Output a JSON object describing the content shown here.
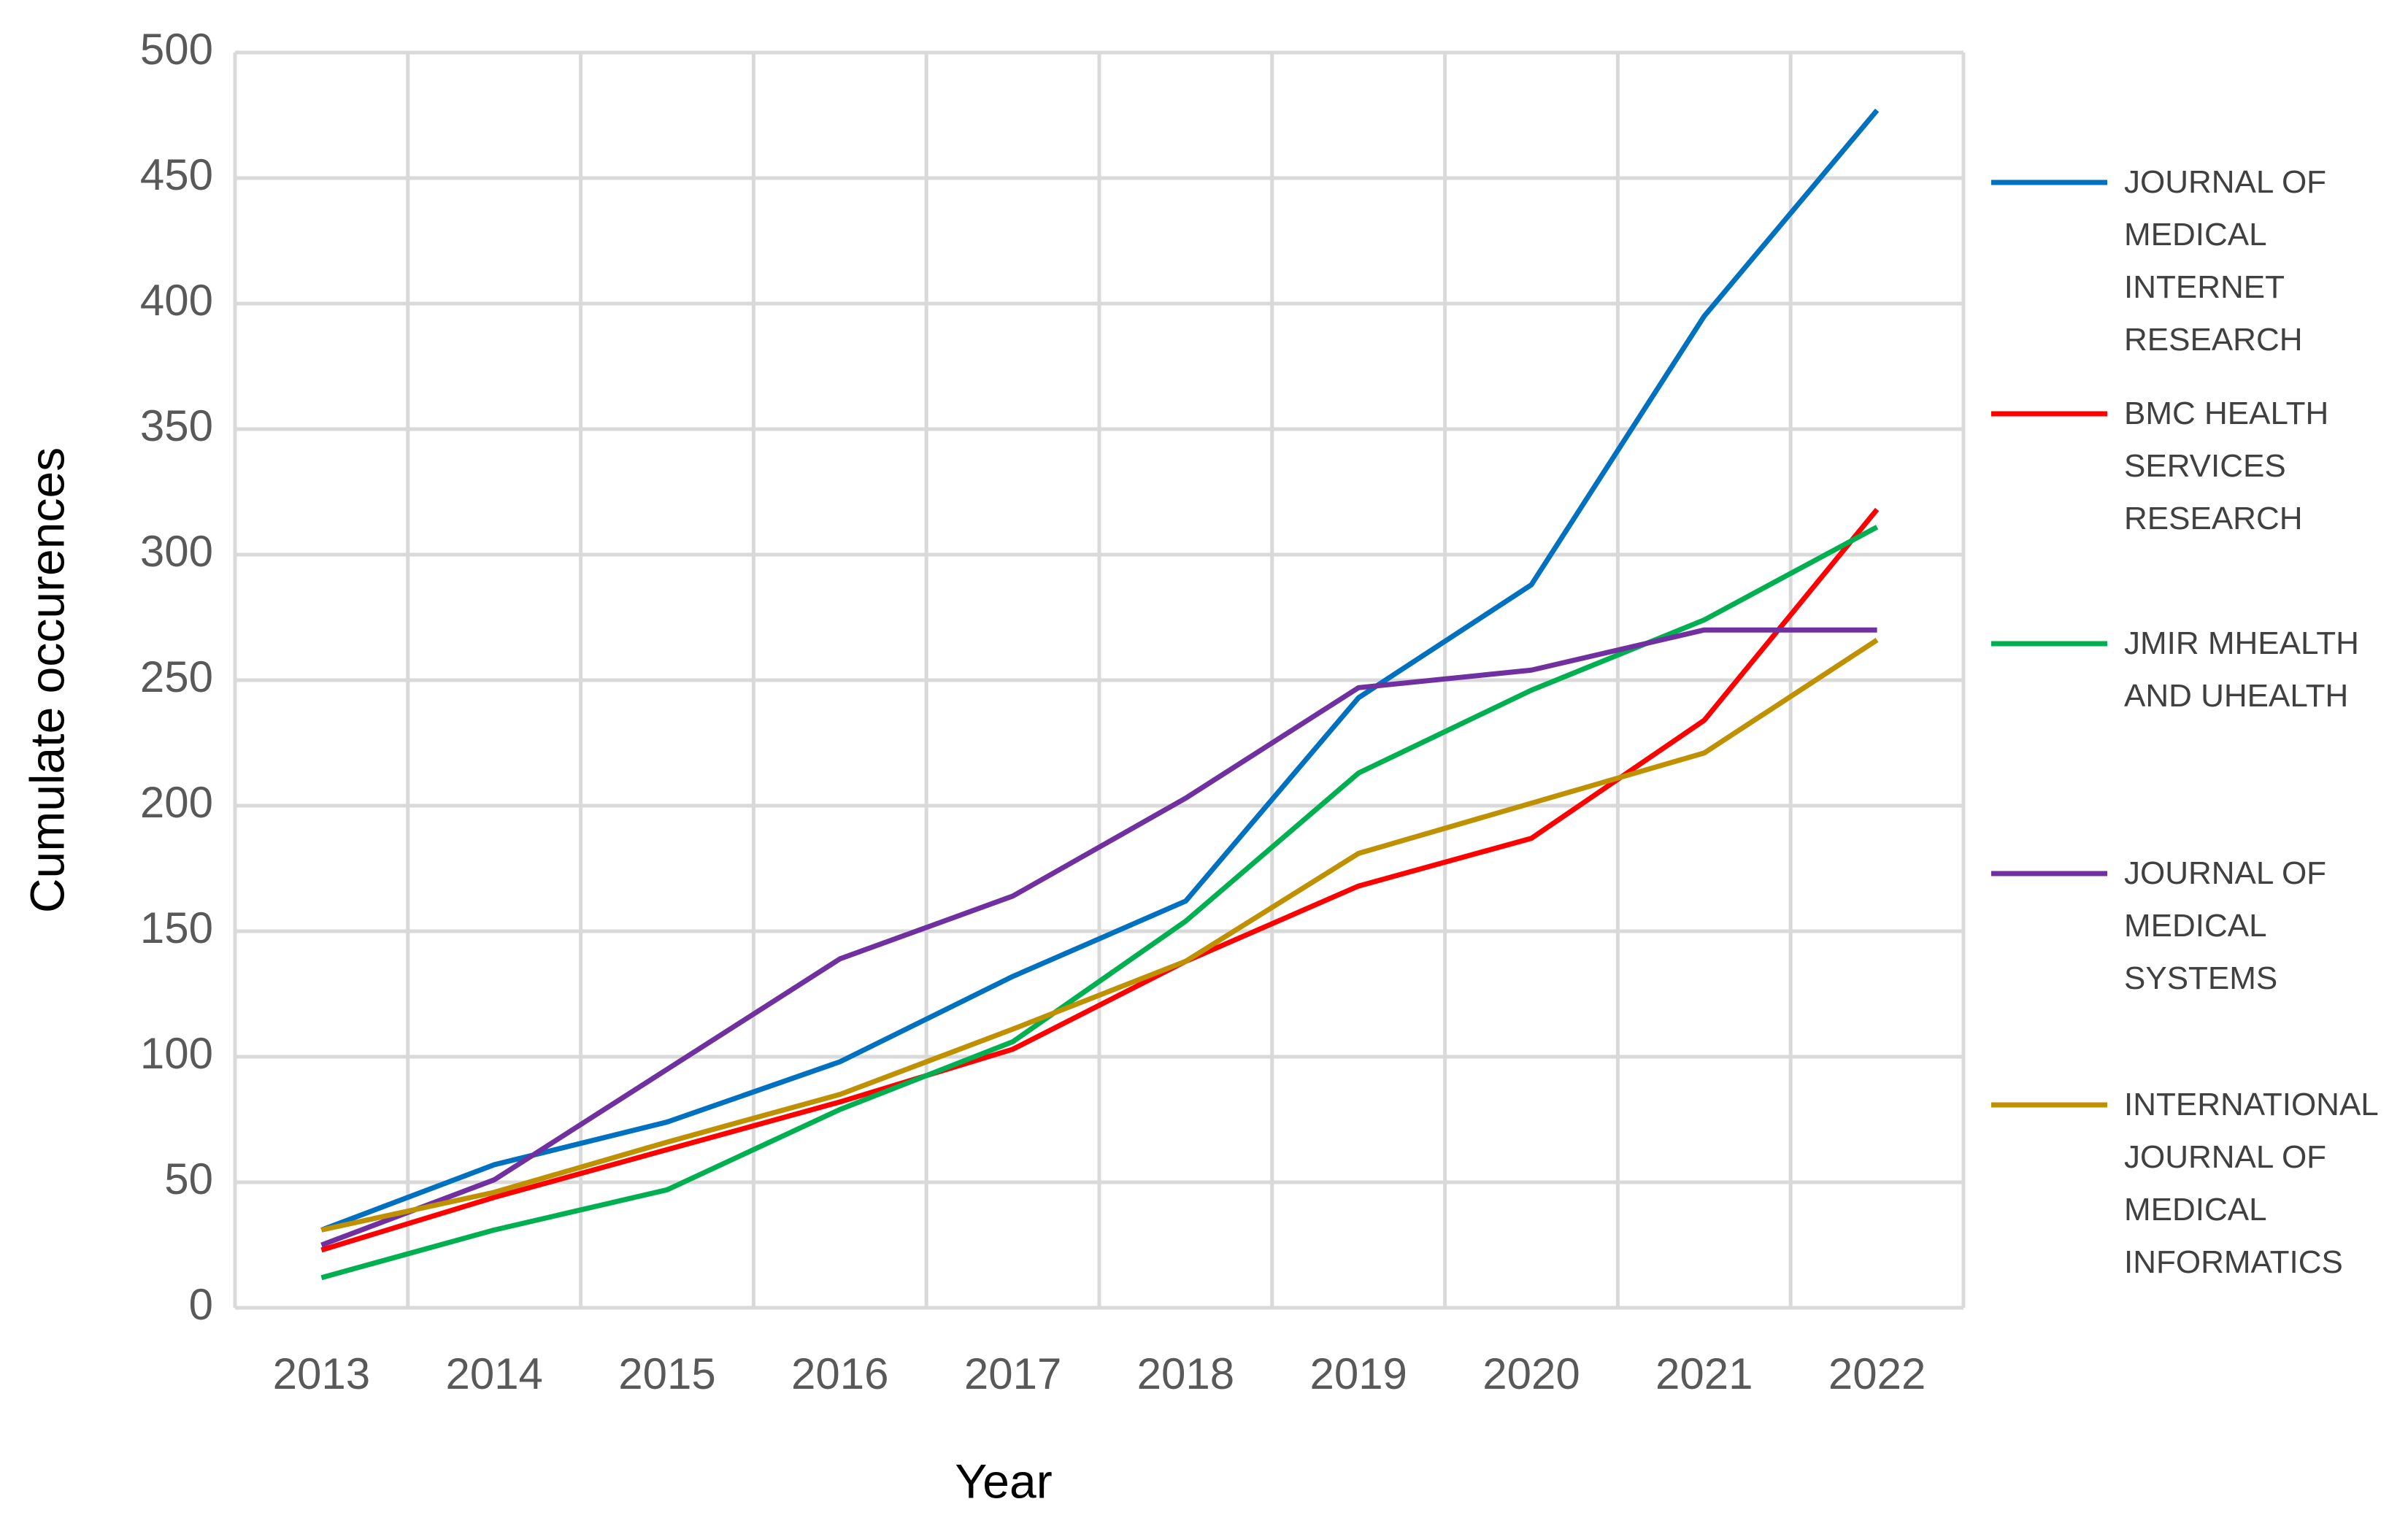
{
  "chart_data": {
    "type": "line",
    "x_label": "Year",
    "y_label": "Cumulate occurences",
    "categories": [
      "2013",
      "2014",
      "2015",
      "2016",
      "2017",
      "2018",
      "2019",
      "2020",
      "2021",
      "2022"
    ],
    "series": [
      {
        "name": "JOURNAL OF MEDICAL INTERNET RESEARCH",
        "color": "#0070c0",
        "values": [
          31,
          57,
          74,
          98,
          132,
          162,
          243,
          288,
          395,
          477
        ]
      },
      {
        "name": "BMC HEALTH SERVICES RESEARCH",
        "color": "#ff0000",
        "values": [
          23,
          44,
          63,
          82,
          103,
          138,
          168,
          187,
          234,
          318
        ]
      },
      {
        "name": "JMIR MHEALTH AND UHEALTH",
        "color": "#00b050",
        "values": [
          12,
          31,
          47,
          79,
          106,
          154,
          213,
          246,
          274,
          311
        ]
      },
      {
        "name": "JOURNAL OF MEDICAL SYSTEMS",
        "color": "#7030a0",
        "values": [
          25,
          51,
          95,
          139,
          164,
          203,
          247,
          254,
          270,
          270
        ]
      },
      {
        "name": "INTERNATIONAL JOURNAL OF MEDICAL INFORMATICS",
        "color": "#bf9000",
        "values": [
          31,
          46,
          66,
          85,
          111,
          138,
          181,
          201,
          221,
          266
        ]
      }
    ],
    "ylim": [
      0,
      500
    ],
    "yticks": [
      0,
      50,
      100,
      150,
      200,
      250,
      300,
      350,
      400,
      450,
      500
    ],
    "grid": true,
    "legend": "right"
  }
}
